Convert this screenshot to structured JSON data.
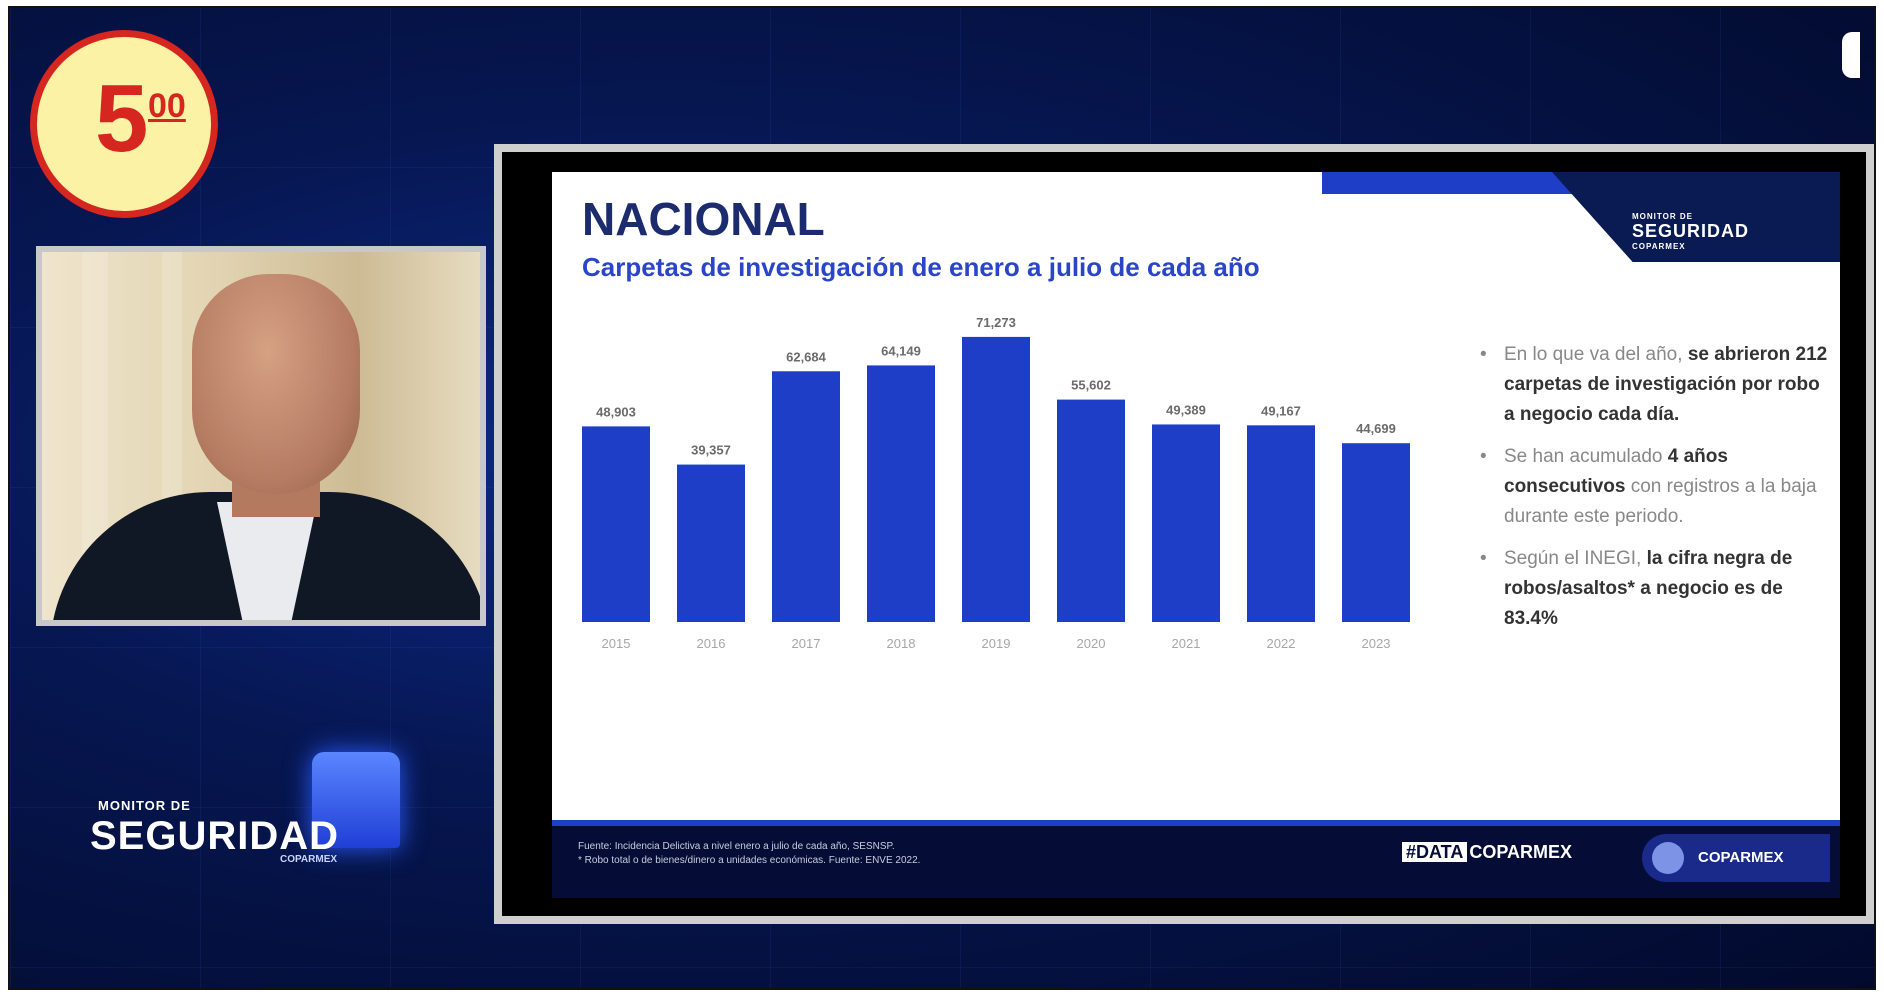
{
  "badge": {
    "value": "5",
    "fraction": "00"
  },
  "monitor_logo": {
    "line1": "MONITOR DE",
    "line2": "SEGURIDAD",
    "line3": "COPARMEX"
  },
  "slide": {
    "logo": {
      "top": "MONITOR DE",
      "main": "SEGURIDAD",
      "bottom": "COPARMEX"
    },
    "bullets": [
      {
        "parts": [
          {
            "t": "En lo que va del año, ",
            "b": false
          },
          {
            "t": "se abrieron 212 carpetas de investigación por robo a negocio cada día.",
            "b": true
          }
        ]
      },
      {
        "parts": [
          {
            "t": "Se han acumulado ",
            "b": false
          },
          {
            "t": "4 años consecutivos",
            "b": true
          },
          {
            "t": " con registros a la baja durante este periodo.",
            "b": false
          }
        ]
      },
      {
        "parts": [
          {
            "t": "Según el INEGI, ",
            "b": false
          },
          {
            "t": "la cifra negra de robos/asaltos* a negocio es de 83.4%",
            "b": true
          }
        ]
      }
    ],
    "footer": {
      "source_line1": "Fuente: Incidencia Delictiva a nivel enero a julio de cada año, SESNSP.",
      "source_line2": "* Robo total o de bienes/dinero a unidades económicas. Fuente: ENVE 2022.",
      "hashtag_prefix": "#DATA",
      "hashtag_suffix": "COPARMEX",
      "brand": "COPARMEX"
    }
  },
  "colors": {
    "bar": "#1f3ec8",
    "title": "#1b2b6e",
    "subtitle": "#2a45c8"
  },
  "chart_data": {
    "type": "bar",
    "title": "NACIONAL",
    "subtitle": "Carpetas de investigación de enero a julio de cada año",
    "categories": [
      "2015",
      "2016",
      "2017",
      "2018",
      "2019",
      "2020",
      "2021",
      "2022",
      "2023"
    ],
    "values": [
      48903,
      39357,
      62684,
      64149,
      71273,
      55602,
      49389,
      49167,
      44699
    ],
    "value_labels": [
      "48,903",
      "39,357",
      "62,684",
      "64,149",
      "71,273",
      "55,602",
      "49,389",
      "49,167",
      "44,699"
    ],
    "ylim": [
      0,
      80000
    ],
    "grid": false,
    "legend": "none"
  }
}
